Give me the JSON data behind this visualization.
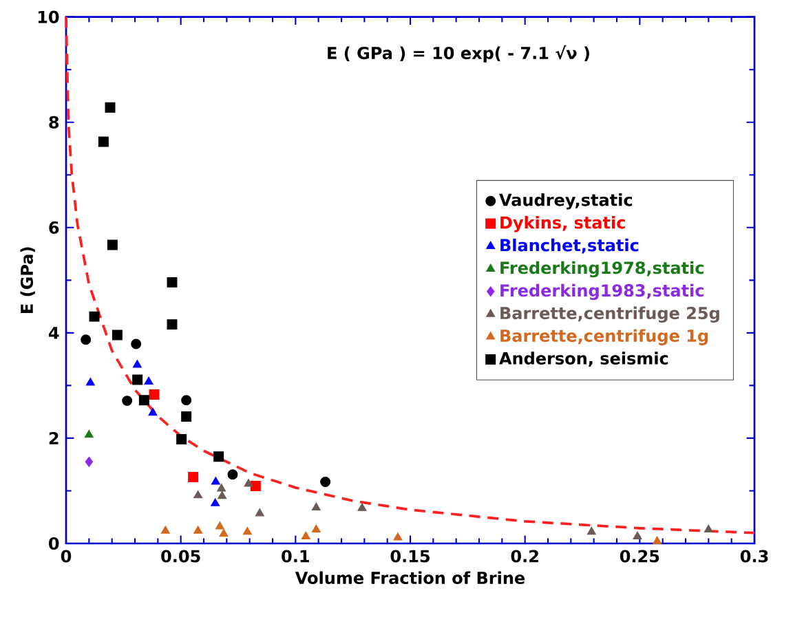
{
  "chart_data": {
    "type": "scatter",
    "xlabel": "Volume Fraction of Brine",
    "ylabel": "E  (GPa)",
    "annotations": [
      "E ( GPa ) = 10 exp( - 7.1 √ν )"
    ],
    "xlim": [
      0,
      0.3
    ],
    "ylim": [
      0,
      10
    ],
    "xticks": [
      0,
      0.05,
      0.1,
      0.15,
      0.2,
      0.25,
      0.3
    ],
    "yticks": [
      0,
      2,
      4,
      6,
      8,
      10
    ],
    "legend": "right",
    "series": [
      {
        "type": "line",
        "color": "#ff2020",
        "line_style": "dashed",
        "marker": "none",
        "x": [
          0,
          0.001,
          0.0025,
          0.005,
          0.01,
          0.02,
          0.03,
          0.04,
          0.05,
          0.06,
          0.08,
          0.1,
          0.125,
          0.15,
          0.2,
          0.25,
          0.3
        ],
        "values": [
          10,
          7.99,
          7.01,
          6.05,
          4.92,
          3.66,
          2.92,
          2.42,
          2.04,
          1.76,
          1.34,
          1.06,
          0.81,
          0.64,
          0.42,
          0.29,
          0.2
        ]
      },
      {
        "name": "Vaudrey,static",
        "color": "#000000",
        "marker": "circle",
        "x": [
          0.0086,
          0.0305,
          0.0266,
          0.0524,
          0.0726,
          0.113
        ],
        "values": [
          3.87,
          3.79,
          2.71,
          2.72,
          1.31,
          1.17
        ]
      },
      {
        "name": "Dykins, static",
        "color": "#ff0000",
        "marker": "square",
        "x": [
          0.0384,
          0.0554,
          0.0826
        ],
        "values": [
          2.83,
          1.26,
          1.09
        ]
      },
      {
        "name": "Blanchet,static",
        "color": "#0000ff",
        "marker": "triangle",
        "x": [
          0.0106,
          0.031,
          0.036,
          0.0378,
          0.0652,
          0.065
        ],
        "values": [
          3.05,
          3.39,
          3.07,
          2.48,
          1.17,
          0.76
        ]
      },
      {
        "name": "Frederking1978,static",
        "color": "#1a7a1a",
        "marker": "triangle",
        "x": [
          0.01
        ],
        "values": [
          2.06
        ]
      },
      {
        "name": "Frederking1983,static",
        "color": "#8a2be2",
        "marker": "diamond",
        "x": [
          0.01
        ],
        "values": [
          1.55
        ]
      },
      {
        "name": "Barrette,centrifuge 25g",
        "color": "#6b5a55",
        "marker": "triangle",
        "x": [
          0.0575,
          0.0677,
          0.068,
          0.0795,
          0.0844,
          0.109,
          0.129,
          0.229,
          0.249,
          0.28
        ],
        "values": [
          0.91,
          1.04,
          0.9,
          1.13,
          0.57,
          0.68,
          0.67,
          0.22,
          0.13,
          0.26
        ]
      },
      {
        "name": "Barrette,centrifuge 1g",
        "color": "#d2691e",
        "marker": "triangle",
        "x": [
          0.0433,
          0.0575,
          0.067,
          0.0687,
          0.079,
          0.1045,
          0.109,
          0.1446,
          0.2576
        ],
        "values": [
          0.24,
          0.24,
          0.32,
          0.18,
          0.22,
          0.13,
          0.26,
          0.11,
          0.04
        ]
      },
      {
        "name": "Anderson, seismic",
        "color": "#000000",
        "marker": "square",
        "x": [
          0.0192,
          0.0163,
          0.0202,
          0.0462,
          0.0462,
          0.0123,
          0.0223,
          0.0311,
          0.034,
          0.0524,
          0.0503,
          0.0665
        ],
        "values": [
          8.28,
          7.63,
          5.67,
          4.96,
          4.16,
          4.31,
          3.96,
          3.11,
          2.72,
          2.41,
          1.98,
          1.65
        ]
      }
    ]
  }
}
